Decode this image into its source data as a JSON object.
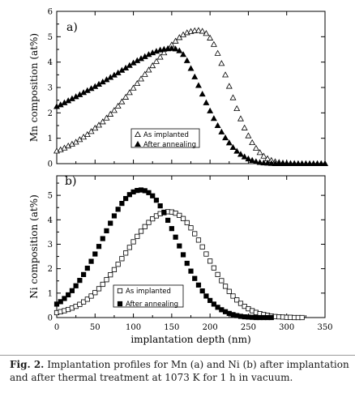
{
  "caption": {
    "label": "Fig. 2.",
    "text": "Implantation profiles for Mn (a) and Ni (b) after implantation and after thermal treatment at 1073 K for 1 h in vacuum."
  },
  "chart_data": [
    {
      "type": "scatter",
      "panel_label": "a)",
      "xlabel": "",
      "ylabel": "Mn composition (at%)",
      "xlim": [
        0,
        350
      ],
      "ylim": [
        0,
        6
      ],
      "xticks": [
        0,
        50,
        100,
        150,
        200,
        250,
        300,
        350
      ],
      "yticks": [
        0,
        1,
        2,
        3,
        4,
        5,
        6
      ],
      "legend_position": "center",
      "series": [
        {
          "name": "As implanted",
          "marker": "open-triangle",
          "x": [
            0,
            5,
            10,
            15,
            20,
            25,
            30,
            35,
            40,
            45,
            50,
            55,
            60,
            65,
            70,
            75,
            80,
            85,
            90,
            95,
            100,
            105,
            110,
            115,
            120,
            125,
            130,
            135,
            140,
            145,
            150,
            155,
            160,
            165,
            170,
            175,
            180,
            185,
            190,
            195,
            200,
            205,
            210,
            215,
            220,
            225,
            230,
            235,
            240,
            245,
            250,
            255,
            260,
            265,
            270,
            275,
            280,
            285,
            290,
            295,
            300,
            305,
            310,
            315,
            320,
            325,
            330,
            335,
            340,
            345,
            350
          ],
          "y": [
            0.5,
            0.55,
            0.62,
            0.7,
            0.77,
            0.85,
            0.95,
            1.05,
            1.15,
            1.27,
            1.4,
            1.52,
            1.65,
            1.8,
            1.95,
            2.1,
            2.27,
            2.44,
            2.62,
            2.8,
            2.98,
            3.16,
            3.34,
            3.52,
            3.69,
            3.86,
            4.03,
            4.2,
            4.37,
            4.53,
            4.68,
            4.83,
            4.97,
            5.08,
            5.16,
            5.21,
            5.24,
            5.25,
            5.22,
            5.13,
            4.95,
            4.7,
            4.35,
            3.95,
            3.5,
            3.05,
            2.6,
            2.17,
            1.77,
            1.41,
            1.1,
            0.83,
            0.61,
            0.44,
            0.3,
            0.2,
            0.13,
            0.08,
            0.05,
            0.03,
            0.02,
            0.01,
            0.01,
            0.0,
            0.0,
            0.0,
            0.0,
            0.0,
            0.0,
            0.0,
            0.0
          ]
        },
        {
          "name": "After annealing",
          "marker": "filled-triangle",
          "x": [
            0,
            5,
            10,
            15,
            20,
            25,
            30,
            35,
            40,
            45,
            50,
            55,
            60,
            65,
            70,
            75,
            80,
            85,
            90,
            95,
            100,
            105,
            110,
            115,
            120,
            125,
            130,
            135,
            140,
            145,
            150,
            155,
            160,
            165,
            170,
            175,
            180,
            185,
            190,
            195,
            200,
            205,
            210,
            215,
            220,
            225,
            230,
            235,
            240,
            245,
            250,
            255,
            260,
            265,
            270,
            275,
            280,
            285,
            290,
            295,
            300,
            305,
            310,
            315,
            320,
            325,
            330,
            335,
            340,
            345,
            350
          ],
          "y": [
            2.25,
            2.32,
            2.4,
            2.48,
            2.56,
            2.64,
            2.72,
            2.8,
            2.88,
            2.96,
            3.04,
            3.13,
            3.22,
            3.31,
            3.4,
            3.49,
            3.58,
            3.68,
            3.77,
            3.87,
            3.97,
            4.06,
            4.14,
            4.22,
            4.3,
            4.37,
            4.43,
            4.48,
            4.51,
            4.53,
            4.54,
            4.52,
            4.45,
            4.3,
            4.06,
            3.75,
            3.42,
            3.08,
            2.74,
            2.4,
            2.08,
            1.78,
            1.5,
            1.25,
            1.02,
            0.82,
            0.64,
            0.49,
            0.37,
            0.27,
            0.19,
            0.13,
            0.08,
            0.05,
            0.03,
            0.02,
            0.01,
            0.0,
            0.0,
            0.0,
            0.0,
            0.0,
            0.0,
            0.0,
            0.0,
            0.0,
            0.0,
            0.0,
            0.0,
            0.0,
            0.0
          ]
        }
      ]
    },
    {
      "type": "scatter",
      "panel_label": "b)",
      "xlabel": "implantation depth (nm)",
      "ylabel": "Ni composition (at%)",
      "xlim": [
        0,
        350
      ],
      "ylim": [
        0,
        5.8
      ],
      "xticks": [
        0,
        50,
        100,
        150,
        200,
        250,
        300,
        350
      ],
      "yticks": [
        0,
        1,
        2,
        3,
        4,
        5
      ],
      "legend_position": "center",
      "series": [
        {
          "name": "As implanted",
          "marker": "open-square",
          "x": [
            0,
            5,
            10,
            15,
            20,
            25,
            30,
            35,
            40,
            45,
            50,
            55,
            60,
            65,
            70,
            75,
            80,
            85,
            90,
            95,
            100,
            105,
            110,
            115,
            120,
            125,
            130,
            135,
            140,
            145,
            150,
            155,
            160,
            165,
            170,
            175,
            180,
            185,
            190,
            195,
            200,
            205,
            210,
            215,
            220,
            225,
            230,
            235,
            240,
            245,
            250,
            255,
            260,
            265,
            270,
            275,
            280,
            285,
            290,
            295,
            300,
            305,
            310,
            315,
            320
          ],
          "y": [
            0.2,
            0.24,
            0.28,
            0.33,
            0.39,
            0.46,
            0.54,
            0.64,
            0.75,
            0.88,
            1.02,
            1.18,
            1.36,
            1.55,
            1.75,
            1.96,
            2.18,
            2.41,
            2.64,
            2.87,
            3.1,
            3.32,
            3.53,
            3.72,
            3.89,
            4.04,
            4.16,
            4.25,
            4.31,
            4.33,
            4.32,
            4.27,
            4.18,
            4.05,
            3.88,
            3.67,
            3.43,
            3.17,
            2.89,
            2.6,
            2.31,
            2.03,
            1.76,
            1.51,
            1.28,
            1.07,
            0.88,
            0.72,
            0.58,
            0.46,
            0.36,
            0.28,
            0.21,
            0.16,
            0.12,
            0.09,
            0.06,
            0.04,
            0.03,
            0.02,
            0.01,
            0.01,
            0.0,
            0.0,
            0.0
          ]
        },
        {
          "name": "After annealing",
          "marker": "filled-square",
          "x": [
            0,
            5,
            10,
            15,
            20,
            25,
            30,
            35,
            40,
            45,
            50,
            55,
            60,
            65,
            70,
            75,
            80,
            85,
            90,
            95,
            100,
            105,
            110,
            115,
            120,
            125,
            130,
            135,
            140,
            145,
            150,
            155,
            160,
            165,
            170,
            175,
            180,
            185,
            190,
            195,
            200,
            205,
            210,
            215,
            220,
            225,
            230,
            235,
            240,
            245,
            250,
            255,
            260,
            265,
            270,
            275,
            280
          ],
          "y": [
            0.55,
            0.65,
            0.78,
            0.93,
            1.1,
            1.3,
            1.52,
            1.76,
            2.02,
            2.3,
            2.6,
            2.91,
            3.23,
            3.55,
            3.86,
            4.16,
            4.43,
            4.67,
            4.87,
            5.03,
            5.14,
            5.2,
            5.22,
            5.19,
            5.11,
            4.98,
            4.8,
            4.57,
            4.29,
            3.98,
            3.64,
            3.29,
            2.93,
            2.57,
            2.22,
            1.9,
            1.6,
            1.33,
            1.09,
            0.88,
            0.7,
            0.55,
            0.42,
            0.32,
            0.24,
            0.17,
            0.12,
            0.08,
            0.05,
            0.03,
            0.02,
            0.01,
            0.0,
            0.0,
            0.0,
            0.0,
            0.0
          ]
        }
      ]
    }
  ]
}
